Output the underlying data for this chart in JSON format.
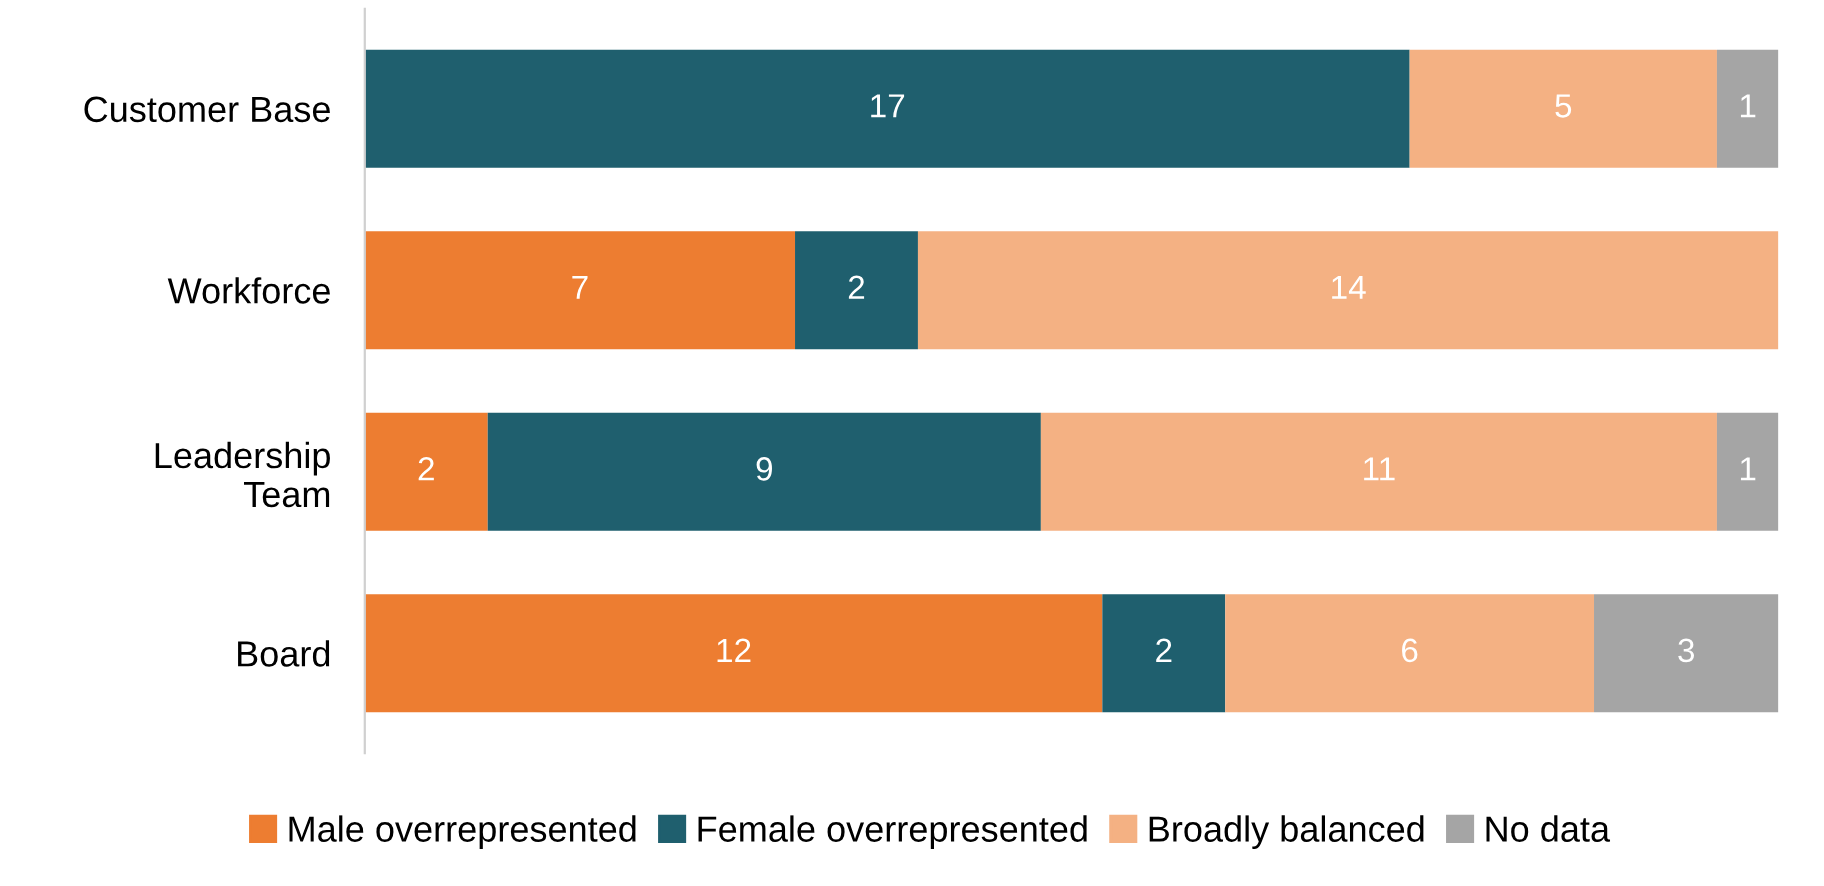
{
  "chart_data": {
    "type": "bar",
    "orientation": "horizontal",
    "stacked": true,
    "categories": [
      "Customer Base",
      "Workforce",
      "Leadership\nTeam",
      "Board"
    ],
    "series": [
      {
        "name": "Male overrepresented",
        "color": "#ed7d31",
        "values": [
          null,
          7,
          2,
          12
        ]
      },
      {
        "name": "Female overrepresented",
        "color": "#1f5f6e",
        "values": [
          17,
          2,
          9,
          2
        ]
      },
      {
        "name": "Broadly balanced",
        "color": "#f4b183",
        "values": [
          5,
          14,
          11,
          6
        ]
      },
      {
        "name": "No data",
        "color": "#a5a5a5",
        "values": [
          1,
          null,
          1,
          3
        ]
      }
    ],
    "xlim": [
      0,
      23
    ],
    "tick_labels": "y",
    "data_labels": true,
    "legend": "bottom",
    "grid": false
  }
}
